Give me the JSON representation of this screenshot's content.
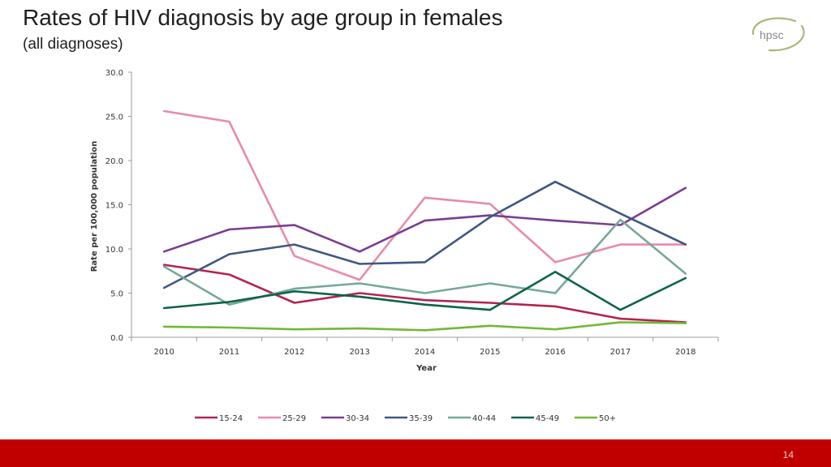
{
  "slide": {
    "title": "Rates of HIV diagnosis by age group in females",
    "subtitle": "(all diagnoses)",
    "logo_text": "hpsc",
    "page_number": "14"
  },
  "colors": {
    "footer": "#c00000",
    "logo": "#a8b879"
  },
  "chart_data": {
    "type": "line",
    "title": "",
    "xlabel": "Year",
    "ylabel": "Rate per 100,000 population",
    "x": [
      "2010",
      "2011",
      "2012",
      "2013",
      "2014",
      "2015",
      "2016",
      "2017",
      "2018"
    ],
    "ylim": [
      0,
      30
    ],
    "yticks": [
      "0.0",
      "5.0",
      "10.0",
      "15.0",
      "20.0",
      "25.0",
      "30.0"
    ],
    "grid": false,
    "legend_position": "bottom",
    "series": [
      {
        "name": "15-24",
        "color": "#b5234d",
        "values": [
          8.2,
          7.1,
          3.9,
          5.0,
          4.2,
          3.9,
          3.5,
          2.1,
          1.7
        ]
      },
      {
        "name": "25-29",
        "color": "#e88ca6",
        "values": [
          25.6,
          24.4,
          9.2,
          6.5,
          15.8,
          15.1,
          8.5,
          10.5,
          10.5
        ]
      },
      {
        "name": "30-34",
        "color": "#7b3d91",
        "values": [
          9.7,
          12.2,
          12.7,
          9.7,
          13.2,
          13.8,
          13.2,
          12.7,
          16.9
        ]
      },
      {
        "name": "35-39",
        "color": "#3e5882",
        "values": [
          5.6,
          9.4,
          10.5,
          8.3,
          8.5,
          13.6,
          17.6,
          14.0,
          10.5
        ]
      },
      {
        "name": "40-44",
        "color": "#76a898",
        "values": [
          8.0,
          3.7,
          5.5,
          6.1,
          5.0,
          6.1,
          5.0,
          13.3,
          7.2
        ]
      },
      {
        "name": "45-49",
        "color": "#0b6447",
        "values": [
          3.3,
          4.0,
          5.2,
          4.6,
          3.7,
          3.1,
          7.4,
          3.1,
          6.7
        ]
      },
      {
        "name": "50+",
        "color": "#72b838",
        "values": [
          1.2,
          1.1,
          0.9,
          1.0,
          0.8,
          1.3,
          0.9,
          1.7,
          1.6
        ]
      }
    ]
  }
}
